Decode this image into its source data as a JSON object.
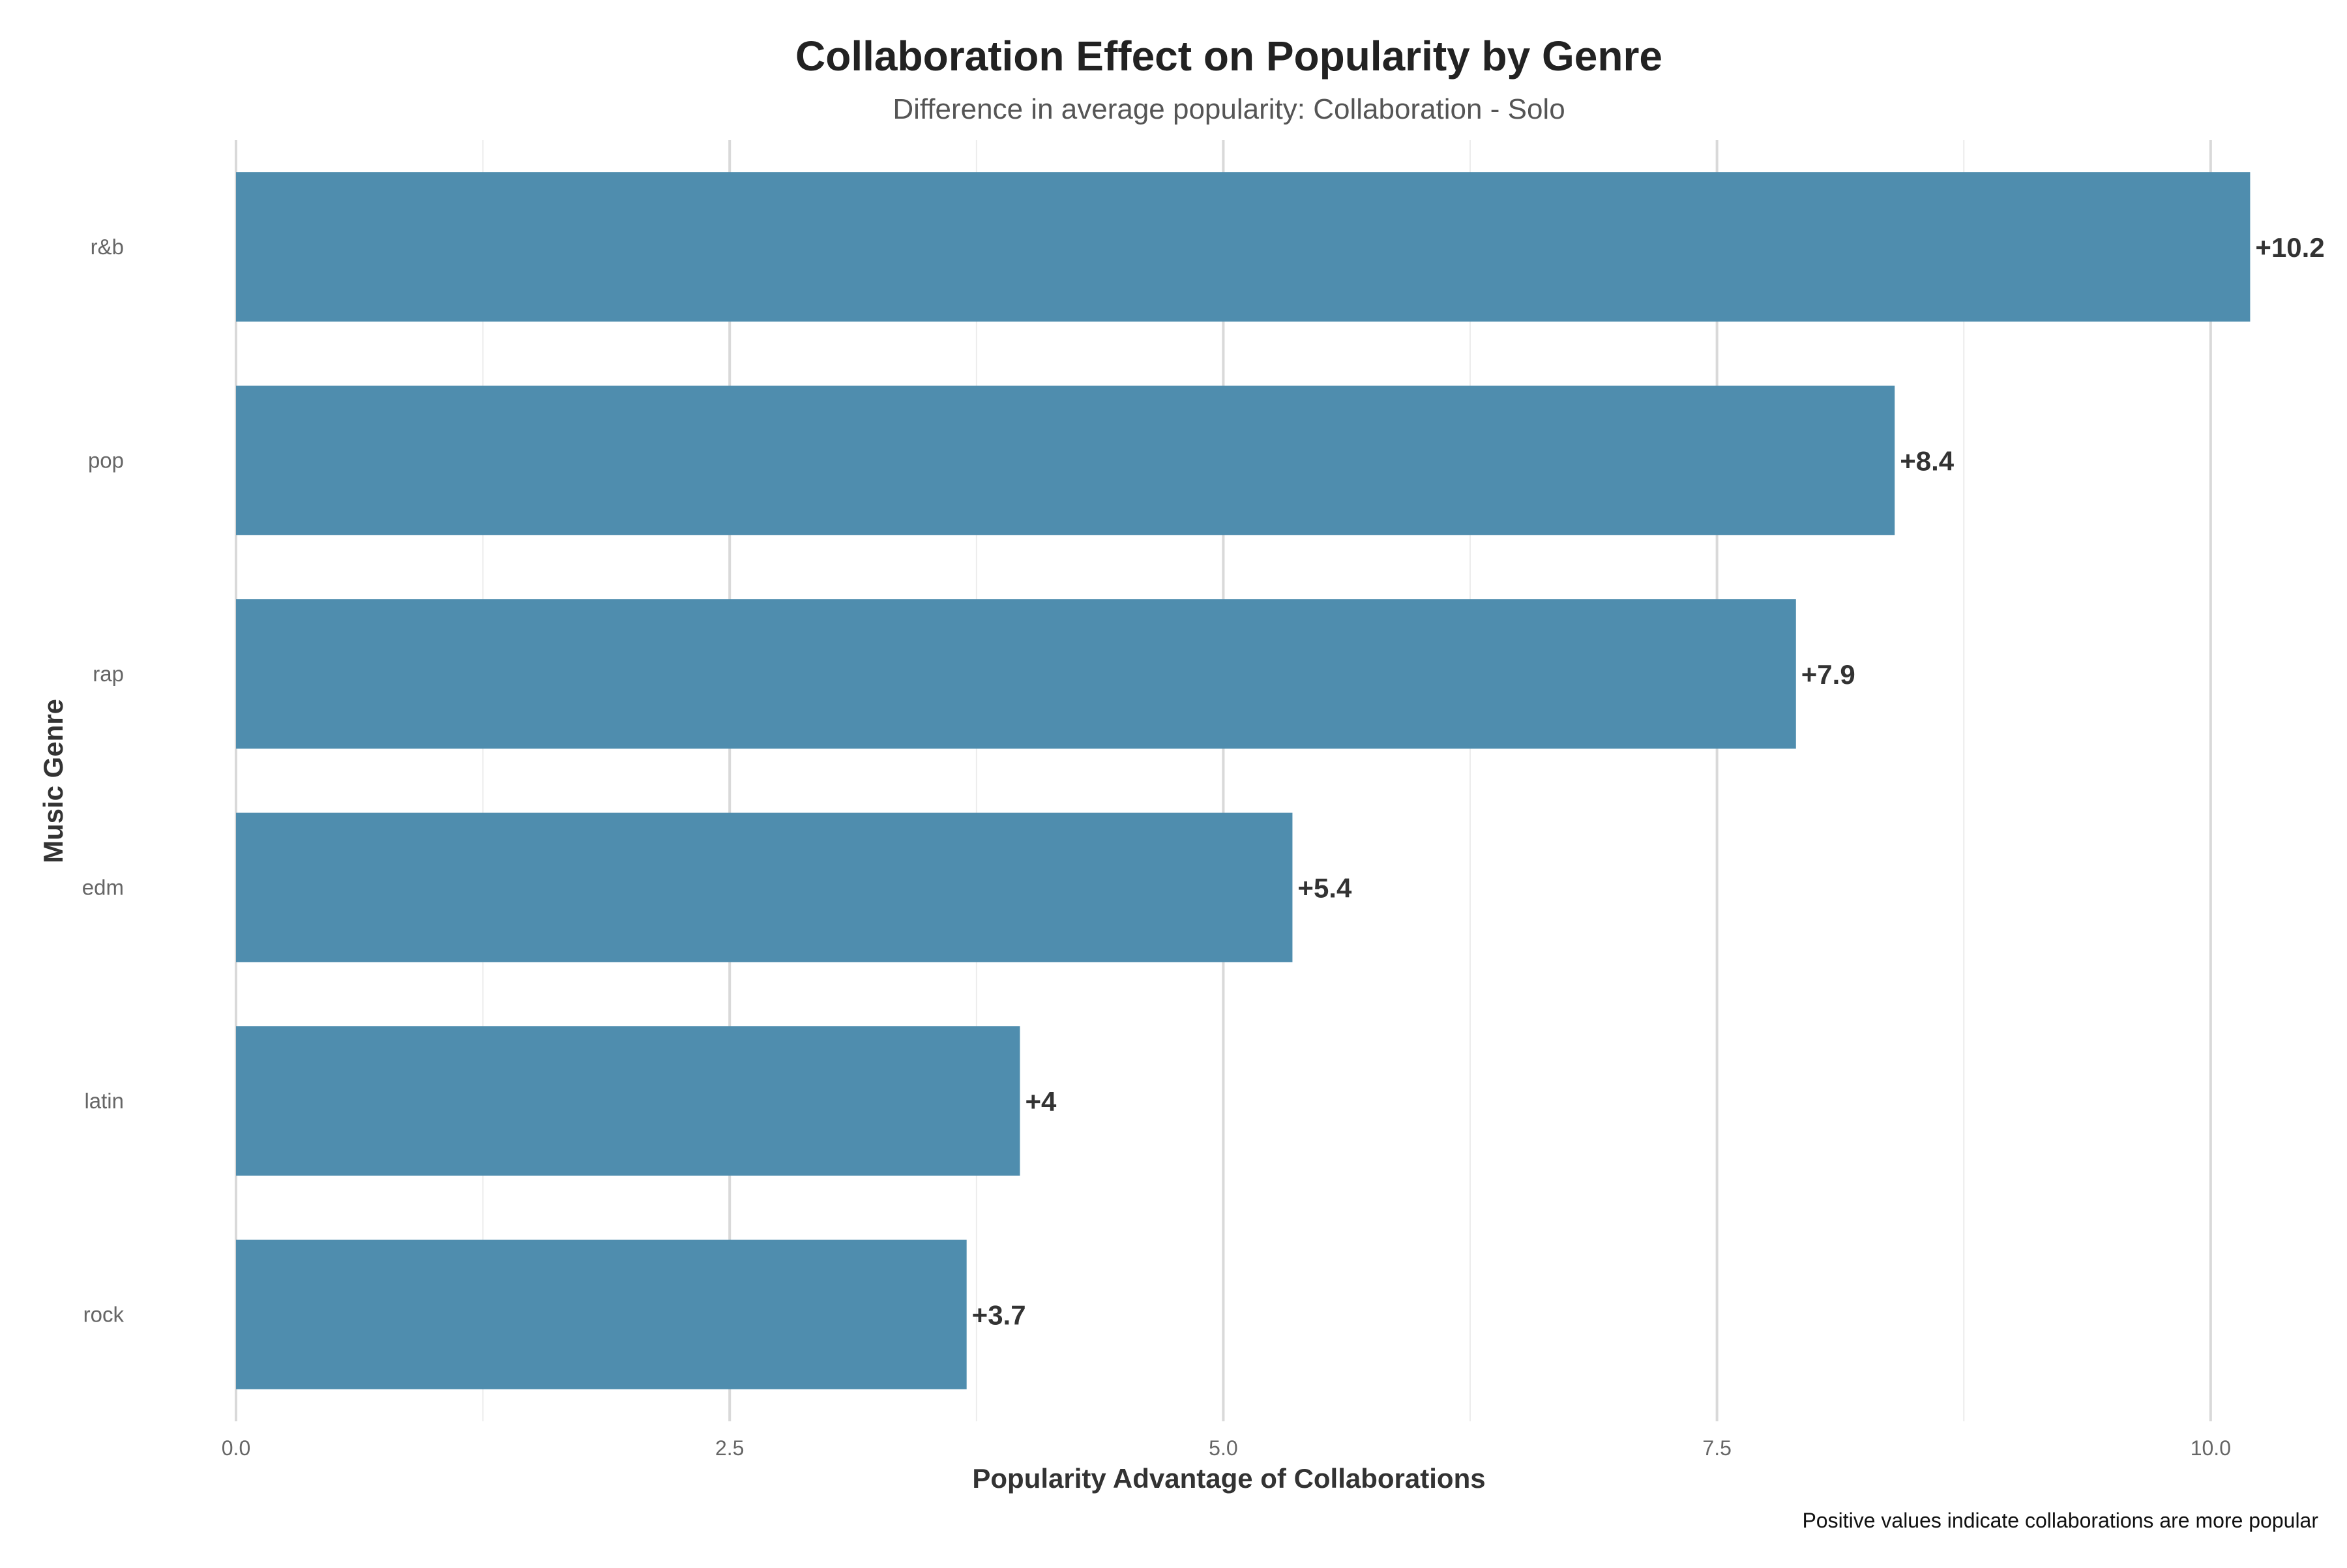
{
  "chart_data": {
    "type": "bar",
    "orientation": "horizontal",
    "title": "Collaboration Effect on Popularity by Genre",
    "subtitle": "Difference in average popularity: Collaboration - Solo",
    "xlabel": "Popularity Advantage of Collaborations",
    "ylabel": "Music Genre",
    "caption": "Positive values indicate collaborations are more popular",
    "categories": [
      "r&b",
      "pop",
      "rap",
      "edm",
      "latin",
      "rock"
    ],
    "values": [
      10.2,
      8.4,
      7.9,
      5.35,
      3.97,
      3.7
    ],
    "data_labels": [
      "+10.2",
      "+8.4",
      "+7.9",
      "+5.4",
      "+4",
      "+3.7"
    ],
    "xlim": [
      0,
      10.4
    ],
    "xticks": [
      0,
      2.5,
      5,
      7.5,
      10
    ],
    "xtick_labels": [
      "0.0",
      "2.5",
      "5.0",
      "7.5",
      "10.0"
    ],
    "grid": true,
    "legend": "none",
    "bar_color": "#4f8dae"
  }
}
